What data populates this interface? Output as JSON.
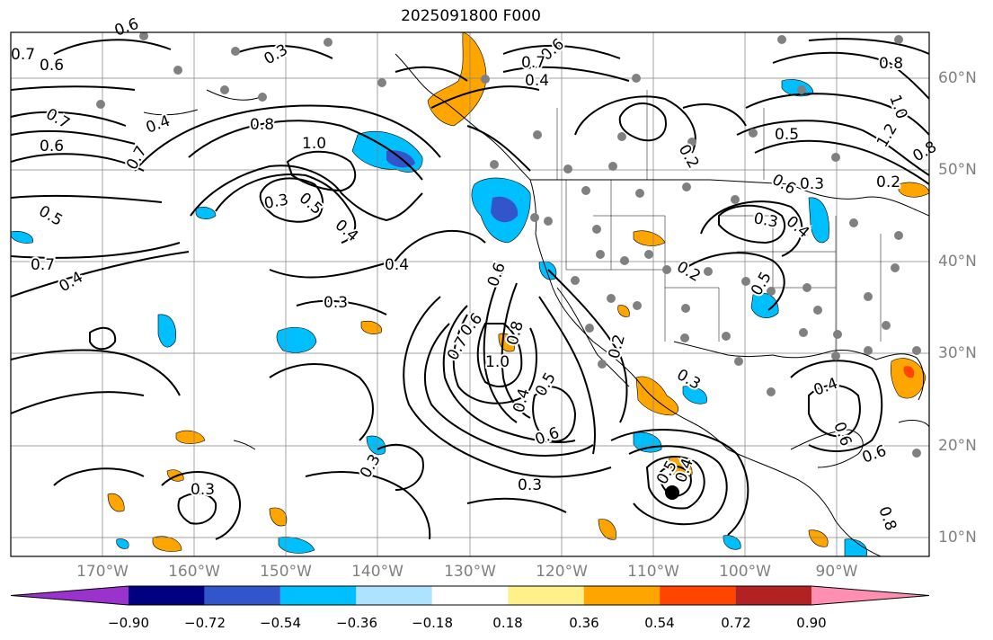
{
  "title": "2025091800 F000",
  "lat_labels": [
    "60°N",
    "50°N",
    "40°N",
    "30°N",
    "20°N",
    "10°N"
  ],
  "lon_labels": [
    "170°W",
    "160°W",
    "150°W",
    "140°W",
    "130°W",
    "120°W",
    "110°W",
    "100°W",
    "90°W"
  ],
  "colorbar": {
    "ticks": [
      "−0.90",
      "−0.72",
      "−0.54",
      "−0.36",
      "−0.18",
      "0.18",
      "0.36",
      "0.54",
      "0.72",
      "0.90"
    ],
    "colors": [
      "#9933cc",
      "#000080",
      "#3355cc",
      "#00bfff",
      "#aee3ff",
      "#ffffff",
      "#fff08a",
      "#ffa500",
      "#ff4500",
      "#b22222",
      "#ff8fb0"
    ]
  },
  "contour_labels": [
    "0.6",
    "0.7",
    "0.6",
    "0.7",
    "0.6",
    "0.7",
    "0.5",
    "0.7",
    "0.4",
    "0.4",
    "0.8",
    "1.0",
    "0.3",
    "0.5",
    "0.4",
    "0.3",
    "0.3",
    "0.4",
    "0.6",
    "0.7",
    "1.0",
    "0.8",
    "0.6",
    "0.4",
    "0.5",
    "0.3",
    "0.6",
    "0.3",
    "0.3",
    "0.3",
    "0.2",
    "0.5",
    "0.4",
    "0.2",
    "0.3",
    "0.5",
    "0.4",
    "0.6",
    "0.7",
    "0.8",
    "1.0",
    "1.2",
    "0.8",
    "0.4",
    "0.3",
    "0.6",
    "0.2",
    "0.2",
    "0.5",
    "0.4",
    "0.6",
    "0.6",
    "0.8"
  ]
}
